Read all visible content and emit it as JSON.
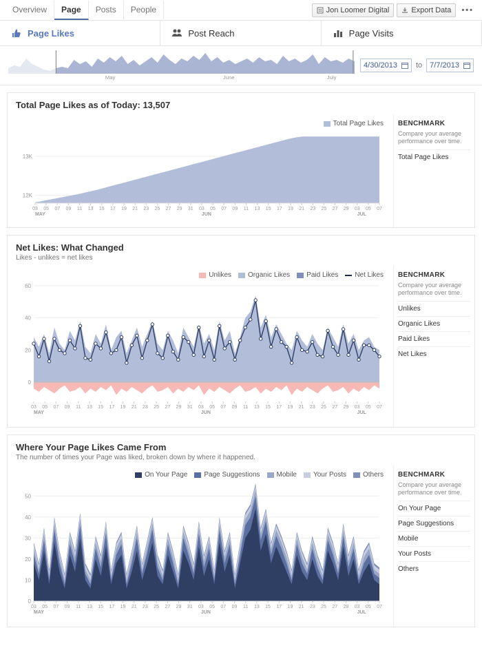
{
  "topnav": {
    "items": [
      "Overview",
      "Page",
      "Posts",
      "People"
    ],
    "active_index": 1
  },
  "topbar_right": {
    "account_label": "Jon Loomer Digital",
    "export_label": "Export Data"
  },
  "tabs": [
    {
      "label": "Page Likes",
      "icon": "thumbs-up",
      "active": true,
      "color": "#5879c1"
    },
    {
      "label": "Post Reach",
      "icon": "people",
      "active": false,
      "color": "#555"
    },
    {
      "label": "Page Visits",
      "icon": "bars",
      "active": false,
      "color": "#555"
    }
  ],
  "date_range": {
    "from": "4/30/2013",
    "to": "7/7/2013",
    "to_word": "to",
    "month_labels": [
      "May",
      "June",
      "July"
    ],
    "sparkline_color": "#a9b5d3",
    "sparkline_faded": "#e4e8f1",
    "spark_values_faded": [
      8,
      12,
      10,
      22,
      14,
      10,
      6,
      4,
      8
    ],
    "spark_values": [
      10,
      8,
      20,
      14,
      18,
      10,
      22,
      16,
      24,
      18,
      26,
      14,
      20,
      12,
      18,
      24,
      16,
      28,
      20,
      14,
      22,
      18,
      26,
      20,
      30,
      18,
      24,
      16,
      20,
      14,
      18,
      22,
      16,
      24,
      18,
      20,
      14,
      26,
      18,
      22,
      16,
      20,
      28,
      14,
      24,
      18,
      20,
      16,
      22,
      18
    ]
  },
  "panel_total": {
    "title": "Total Page Likes as of Today: 13,507",
    "legend": [
      {
        "label": "Total Page Likes",
        "color": "#b1bdd9"
      }
    ],
    "benchmark": {
      "title": "BENCHMARK",
      "sub": "Compare your average performance over time.",
      "items": [
        "Total Page Likes"
      ]
    },
    "chart": {
      "type": "area",
      "fill": "#b1bdd9",
      "ylim": [
        11800,
        13600
      ],
      "yticks": [
        12000,
        13000
      ],
      "ytick_labels": [
        "12K",
        "13K"
      ],
      "x_month_breaks": [
        0,
        31,
        61
      ],
      "x_month_labels": [
        "MAY",
        "JUN",
        "JUL"
      ],
      "values": [
        11820,
        11845,
        11870,
        11895,
        11920,
        11945,
        11970,
        11995,
        12020,
        12050,
        12080,
        12110,
        12140,
        12175,
        12210,
        12245,
        12280,
        12315,
        12350,
        12385,
        12420,
        12455,
        12490,
        12525,
        12560,
        12595,
        12630,
        12665,
        12700,
        12735,
        12770,
        12805,
        12840,
        12875,
        12910,
        12945,
        12980,
        13015,
        13050,
        13085,
        13120,
        13155,
        13190,
        13225,
        13260,
        13295,
        13330,
        13365,
        13400,
        13435,
        13465,
        13490,
        13507,
        13507,
        13507,
        13507,
        13507,
        13507,
        13507,
        13507,
        13507,
        13507,
        13507,
        13507,
        13507,
        13507,
        13507,
        13507
      ]
    }
  },
  "panel_net": {
    "title": "Net Likes: What Changed",
    "sub": "Likes - unlikes = net likes",
    "legend": [
      {
        "label": "Unlikes",
        "color": "#f6b9b6"
      },
      {
        "label": "Organic Likes",
        "color": "#b1bdd9"
      },
      {
        "label": "Paid Likes",
        "color": "#7e8fb9"
      },
      {
        "label": "Net Likes",
        "color": "#1f2a44",
        "line": true
      }
    ],
    "benchmark": {
      "title": "BENCHMARK",
      "sub": "Compare your average performance over time.",
      "items": [
        "Unlikes",
        "Organic Likes",
        "Paid Likes",
        "Net Likes"
      ]
    },
    "chart": {
      "type": "line_area",
      "ylim": [
        -12,
        60
      ],
      "yticks": [
        0,
        20,
        40,
        60
      ],
      "fill_organic": "#b1bdd9",
      "fill_unlikes": "#f6b9b6",
      "line_color": "#2f3e63",
      "marker_fill": "#ffffff",
      "organic": [
        28,
        22,
        30,
        18,
        34,
        24,
        20,
        32,
        26,
        38,
        22,
        18,
        30,
        24,
        36,
        20,
        28,
        32,
        18,
        26,
        34,
        22,
        30,
        38,
        24,
        20,
        32,
        26,
        18,
        34,
        28,
        22,
        36,
        24,
        30,
        20,
        38,
        26,
        32,
        18,
        28,
        40,
        44,
        54,
        34,
        42,
        28,
        36,
        30,
        24,
        20,
        32,
        26,
        22,
        30,
        24,
        20,
        34,
        28,
        22,
        36,
        24,
        30,
        20,
        26,
        28,
        22,
        20
      ],
      "unlikes": [
        4,
        6,
        3,
        5,
        7,
        4,
        2,
        6,
        5,
        3,
        7,
        4,
        6,
        3,
        5,
        2,
        8,
        4,
        6,
        3,
        5,
        7,
        4,
        2,
        6,
        5,
        3,
        7,
        4,
        6,
        3,
        5,
        2,
        8,
        4,
        6,
        3,
        5,
        7,
        4,
        2,
        6,
        5,
        3,
        7,
        4,
        6,
        3,
        5,
        2,
        8,
        4,
        6,
        3,
        5,
        7,
        4,
        2,
        6,
        5,
        3,
        7,
        4,
        6,
        3,
        5,
        2,
        4
      ],
      "net": [
        24,
        16,
        27,
        13,
        27,
        20,
        18,
        26,
        21,
        35,
        15,
        14,
        24,
        21,
        31,
        18,
        20,
        28,
        12,
        23,
        29,
        15,
        26,
        36,
        18,
        15,
        29,
        19,
        14,
        28,
        25,
        17,
        34,
        16,
        26,
        14,
        35,
        21,
        25,
        14,
        26,
        34,
        39,
        51,
        27,
        38,
        22,
        33,
        25,
        22,
        12,
        28,
        20,
        19,
        25,
        17,
        16,
        32,
        22,
        17,
        33,
        17,
        26,
        14,
        23,
        23,
        20,
        16
      ]
    }
  },
  "panel_sources": {
    "title": "Where Your Page Likes Came From",
    "sub": "The number of times your Page was liked, broken down by where it happened.",
    "legend": [
      {
        "label": "On Your Page",
        "color": "#2f3e63"
      },
      {
        "label": "Page Suggestions",
        "color": "#5b6fa0"
      },
      {
        "label": "Mobile",
        "color": "#9aa8c8"
      },
      {
        "label": "Your Posts",
        "color": "#c7cee0"
      },
      {
        "label": "Others",
        "color": "#7e8fb9"
      }
    ],
    "benchmark": {
      "title": "BENCHMARK",
      "sub": "Compare your average performance over time.",
      "items": [
        "On Your Page",
        "Page Suggestions",
        "Mobile",
        "Your Posts",
        "Others"
      ]
    },
    "chart": {
      "type": "stacked_area",
      "ylim": [
        0,
        55
      ],
      "yticks": [
        0,
        10,
        20,
        30,
        40,
        50
      ],
      "colors": [
        "#2f3e63",
        "#5b6fa0",
        "#9aa8c8",
        "#c7cee0",
        "#7e8fb9"
      ],
      "series": [
        [
          18,
          10,
          24,
          8,
          28,
          14,
          6,
          22,
          14,
          30,
          10,
          6,
          20,
          12,
          26,
          8,
          18,
          22,
          6,
          14,
          24,
          10,
          18,
          28,
          12,
          8,
          22,
          14,
          6,
          24,
          18,
          10,
          26,
          12,
          20,
          8,
          28,
          14,
          22,
          6,
          18,
          30,
          34,
          44,
          24,
          32,
          18,
          26,
          20,
          14,
          8,
          22,
          14,
          10,
          20,
          12,
          8,
          24,
          18,
          10,
          26,
          12,
          20,
          8,
          14,
          18,
          10,
          8
        ],
        [
          4,
          3,
          5,
          2,
          6,
          4,
          2,
          5,
          4,
          6,
          3,
          2,
          5,
          4,
          6,
          2,
          4,
          5,
          2,
          4,
          6,
          3,
          5,
          6,
          4,
          2,
          5,
          4,
          2,
          6,
          4,
          3,
          6,
          4,
          5,
          2,
          6,
          4,
          5,
          2,
          4,
          6,
          6,
          6,
          5,
          6,
          4,
          5,
          5,
          4,
          2,
          5,
          4,
          3,
          5,
          4,
          2,
          5,
          4,
          3,
          5,
          4,
          5,
          2,
          4,
          4,
          3,
          3
        ],
        [
          3,
          2,
          3,
          2,
          3,
          3,
          2,
          3,
          3,
          3,
          2,
          2,
          3,
          3,
          3,
          2,
          3,
          3,
          2,
          3,
          3,
          2,
          3,
          3,
          3,
          2,
          3,
          3,
          2,
          3,
          3,
          2,
          3,
          3,
          3,
          2,
          3,
          3,
          3,
          2,
          3,
          3,
          3,
          3,
          3,
          3,
          3,
          3,
          3,
          3,
          2,
          3,
          3,
          2,
          3,
          3,
          2,
          3,
          3,
          2,
          3,
          3,
          3,
          2,
          3,
          3,
          2,
          2
        ],
        [
          2,
          2,
          2,
          2,
          2,
          2,
          2,
          2,
          2,
          2,
          2,
          2,
          2,
          2,
          2,
          2,
          2,
          2,
          2,
          2,
          2,
          2,
          2,
          2,
          2,
          2,
          2,
          2,
          2,
          2,
          2,
          2,
          2,
          2,
          2,
          2,
          2,
          2,
          2,
          2,
          2,
          2,
          2,
          2,
          2,
          2,
          2,
          2,
          2,
          2,
          2,
          2,
          2,
          2,
          2,
          2,
          2,
          2,
          2,
          2,
          2,
          2,
          2,
          2,
          2,
          2,
          2,
          2
        ],
        [
          1,
          1,
          1,
          1,
          1,
          1,
          1,
          1,
          1,
          1,
          1,
          1,
          1,
          1,
          1,
          1,
          1,
          1,
          1,
          1,
          1,
          1,
          1,
          1,
          1,
          1,
          1,
          1,
          1,
          1,
          1,
          1,
          1,
          1,
          1,
          1,
          1,
          1,
          1,
          1,
          1,
          1,
          1,
          1,
          1,
          1,
          1,
          1,
          1,
          1,
          1,
          1,
          1,
          1,
          1,
          1,
          1,
          1,
          1,
          1,
          1,
          1,
          1,
          1,
          1,
          1,
          1,
          1
        ]
      ]
    }
  },
  "x_axis_days": [
    "03",
    "05",
    "07",
    "09",
    "11",
    "13",
    "15",
    "17",
    "19",
    "21",
    "23",
    "25",
    "27",
    "29",
    "31",
    "03",
    "05",
    "07",
    "09",
    "11",
    "13",
    "15",
    "17",
    "19",
    "21",
    "23",
    "25",
    "27",
    "29",
    "03",
    "05",
    "07"
  ],
  "x_axis_month_positions": {
    "MAY": 0,
    "JUN": 15,
    "JUL": 29
  }
}
